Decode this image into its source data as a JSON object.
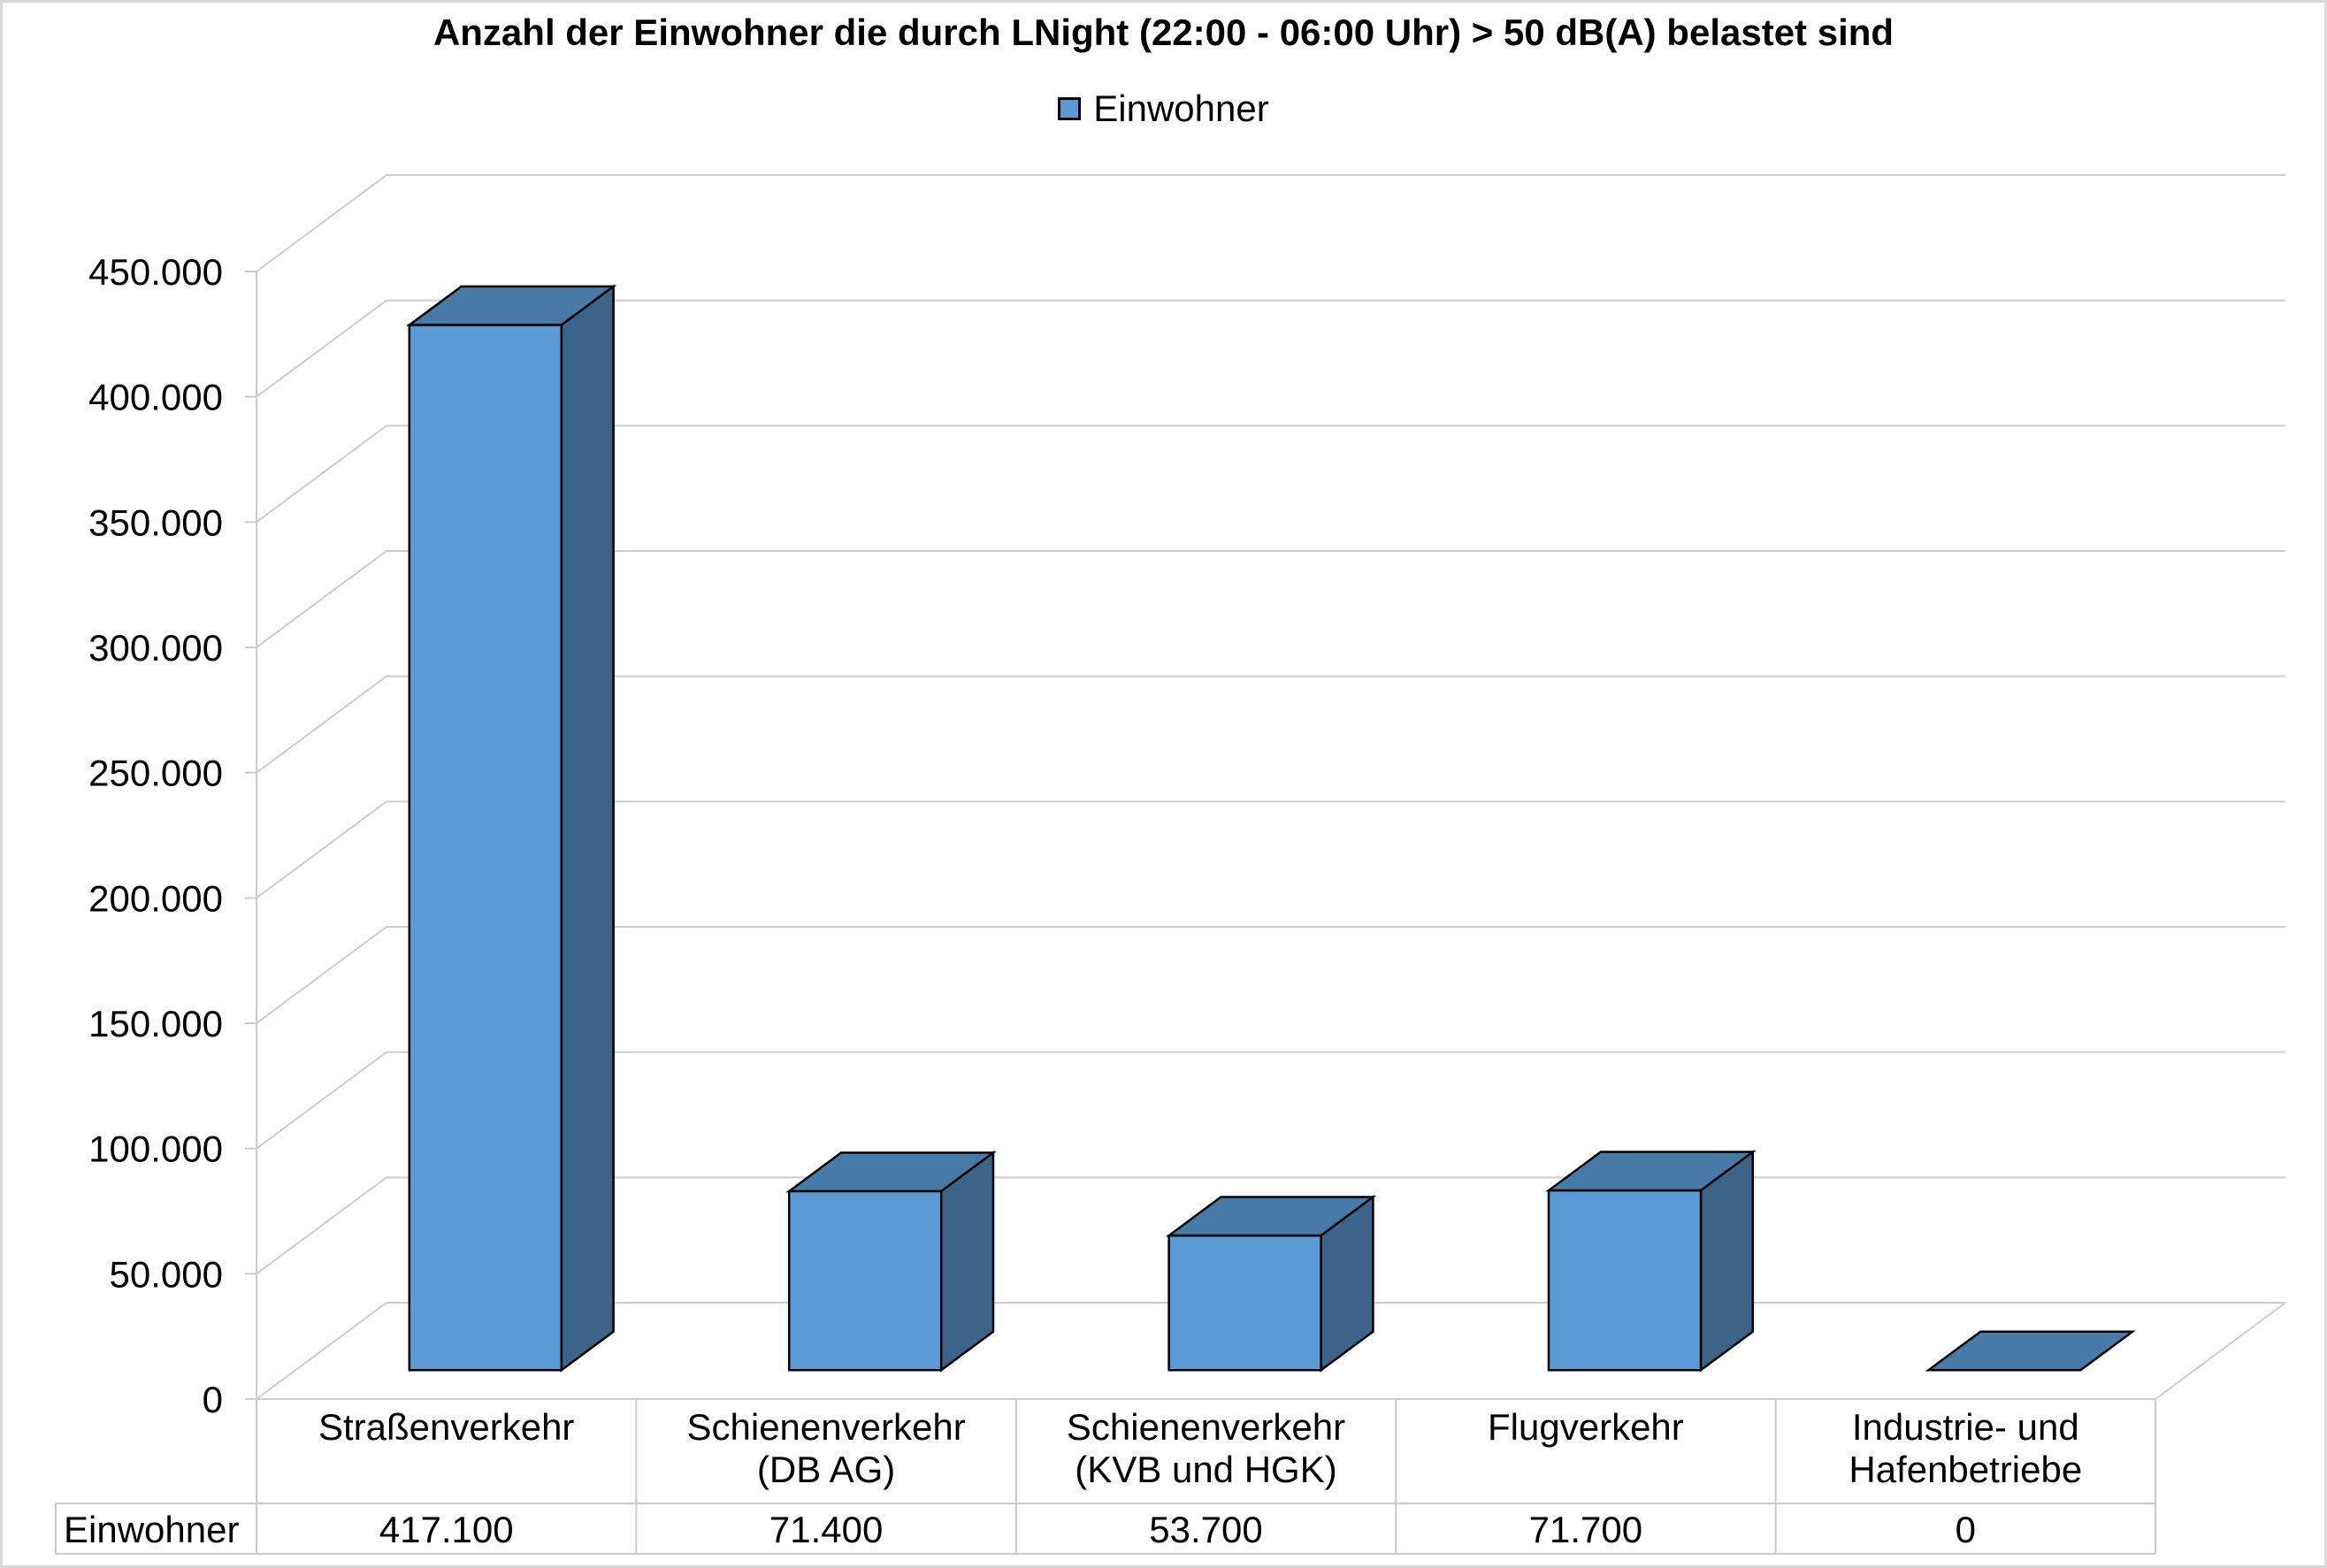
{
  "chart_data": {
    "type": "bar",
    "style": "3d-column",
    "title": "Anzahl der Einwohner die durch LNight (22:00 - 06:00 Uhr) > 50 dB(A) belastet sind",
    "legend": {
      "position": "top",
      "entries": [
        "Einwohner"
      ]
    },
    "categories": [
      "Straßenverkehr",
      "Schienenverkehr (DB AG)",
      "Schienenverkehr (KVB und HGK)",
      "Flugverkehr",
      "Industrie- und Hafenbetriebe"
    ],
    "category_label_lines": [
      [
        "Straßenverkehr"
      ],
      [
        "Schienenverkehr",
        "(DB AG)"
      ],
      [
        "Schienenverkehr",
        "(KVB und HGK)"
      ],
      [
        "Flugverkehr"
      ],
      [
        "Industrie- und",
        "Hafenbetriebe"
      ]
    ],
    "series": [
      {
        "name": "Einwohner",
        "values": [
          417100,
          71400,
          53700,
          71700,
          0
        ]
      }
    ],
    "data_table": {
      "row_header": "Einwohner",
      "values_formatted": [
        "417.100",
        "71.400",
        "53.700",
        "71.700",
        "0"
      ]
    },
    "y_axis": {
      "min": 0,
      "max": 450000,
      "step": 50000,
      "tick_labels": [
        "0",
        "50.000",
        "100.000",
        "150.000",
        "200.000",
        "250.000",
        "300.000",
        "350.000",
        "400.000",
        "450.000"
      ]
    },
    "grid": true,
    "colors": {
      "bar_front": "#5B9AD4",
      "bar_top": "#477AA6",
      "bar_side": "#3C6489",
      "bar_border": "#000000",
      "grid": "#CCCCCC",
      "table_border": "#C9C9C9",
      "frame_border": "#D9D9D9",
      "background": "#FFFFFF",
      "text": "#000000"
    }
  }
}
